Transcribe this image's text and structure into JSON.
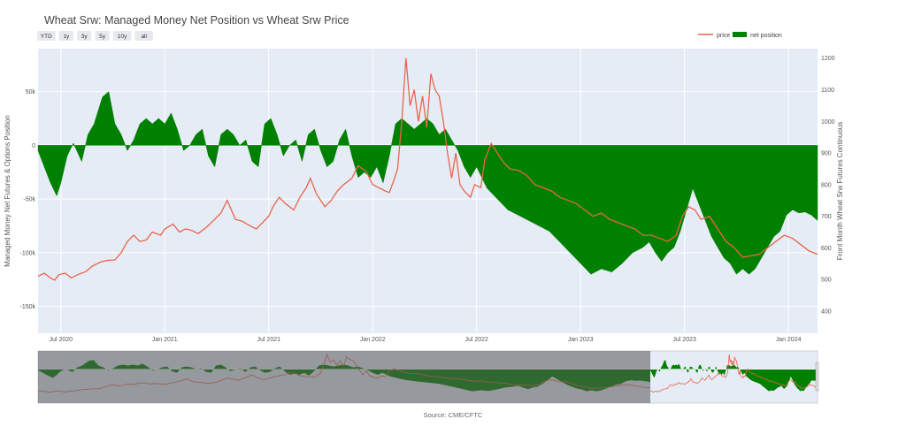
{
  "chart_data": {
    "type": "line",
    "title": "Wheat Srw: Managed Money Net Position vs Wheat Srw Price",
    "source": "Source: CME/CFTC",
    "range_buttons": [
      "YTD",
      "1y",
      "3y",
      "5y",
      "10y",
      "all"
    ],
    "legend": [
      {
        "name": "price",
        "color": "#e8654a",
        "kind": "line"
      },
      {
        "name": "net position",
        "color": "#008000",
        "kind": "area"
      }
    ],
    "y_left": {
      "label": "Managed Money Net Futures & Options Position",
      "ticks": [
        "50k",
        "0",
        "-50k",
        "-100k",
        "-150k"
      ],
      "tick_values": [
        50000,
        0,
        -50000,
        -100000,
        -150000
      ],
      "range": [
        -175000,
        90000
      ]
    },
    "y_right": {
      "label": "Front Month Wheat Srw Futures Continuous",
      "ticks": [
        "1200",
        "1100",
        "1000",
        "900",
        "800",
        "700",
        "600",
        "500",
        "400"
      ],
      "tick_values": [
        1200,
        1100,
        1000,
        900,
        800,
        700,
        600,
        500,
        400
      ],
      "range": [
        330,
        1230
      ]
    },
    "x_axis": {
      "ticks": [
        "Jul 2020",
        "Jan 2021",
        "Jul 2021",
        "Jan 2022",
        "Jul 2022",
        "Jan 2023",
        "Jul 2023",
        "Jan 2024"
      ],
      "tick_values": [
        2020.5,
        2021.0,
        2021.5,
        2022.0,
        2022.5,
        2023.0,
        2023.5,
        2024.0
      ],
      "range": [
        2020.39,
        2024.14
      ]
    },
    "series": [
      {
        "name": "price",
        "color": "#e8654a",
        "x": [
          2020.39,
          2020.42,
          2020.45,
          2020.47,
          2020.49,
          2020.52,
          2020.55,
          2020.58,
          2020.62,
          2020.65,
          2020.69,
          2020.72,
          2020.76,
          2020.79,
          2020.82,
          2020.85,
          2020.88,
          2020.91,
          2020.94,
          2020.98,
          2021.0,
          2021.04,
          2021.07,
          2021.1,
          2021.13,
          2021.16,
          2021.2,
          2021.24,
          2021.27,
          2021.3,
          2021.32,
          2021.34,
          2021.37,
          2021.41,
          2021.44,
          2021.47,
          2021.5,
          2021.52,
          2021.55,
          2021.58,
          2021.62,
          2021.65,
          2021.68,
          2021.7,
          2021.73,
          2021.77,
          2021.8,
          2021.83,
          2021.86,
          2021.9,
          2021.93,
          2021.97,
          2022.0,
          2022.03,
          2022.06,
          2022.08,
          2022.1,
          2022.12,
          2022.14,
          2022.16,
          2022.18,
          2022.2,
          2022.22,
          2022.24,
          2022.26,
          2022.28,
          2022.3,
          2022.32,
          2022.34,
          2022.36,
          2022.38,
          2022.4,
          2022.42,
          2022.44,
          2022.47,
          2022.49,
          2022.52,
          2022.54,
          2022.57,
          2022.6,
          2022.63,
          2022.66,
          2022.7,
          2022.74,
          2022.78,
          2022.82,
          2022.86,
          2022.9,
          2022.94,
          2022.98,
          2023.02,
          2023.06,
          2023.1,
          2023.14,
          2023.18,
          2023.22,
          2023.26,
          2023.3,
          2023.34,
          2023.38,
          2023.42,
          2023.46,
          2023.49,
          2023.52,
          2023.55,
          2023.58,
          2023.62,
          2023.66,
          2023.7,
          2023.74,
          2023.78,
          2023.82,
          2023.86,
          2023.9,
          2023.94,
          2023.98,
          2024.02,
          2024.06,
          2024.1,
          2024.14
        ],
        "values": [
          510,
          520,
          505,
          498,
          515,
          520,
          505,
          515,
          525,
          542,
          555,
          560,
          562,
          585,
          620,
          640,
          620,
          625,
          650,
          640,
          660,
          675,
          650,
          660,
          655,
          645,
          665,
          690,
          710,
          750,
          720,
          690,
          685,
          670,
          660,
          680,
          700,
          730,
          760,
          740,
          720,
          760,
          790,
          820,
          770,
          730,
          750,
          780,
          800,
          820,
          860,
          840,
          800,
          790,
          780,
          775,
          810,
          850,
          1000,
          1200,
          1050,
          1100,
          1000,
          1080,
          980,
          1150,
          1100,
          1080,
          1000,
          900,
          820,
          900,
          800,
          780,
          760,
          800,
          790,
          880,
          930,
          900,
          870,
          850,
          845,
          830,
          800,
          790,
          780,
          760,
          750,
          740,
          720,
          700,
          710,
          690,
          680,
          670,
          660,
          640,
          640,
          630,
          620,
          640,
          700,
          730,
          720,
          690,
          700,
          660,
          620,
          600,
          570,
          575,
          580,
          600,
          620,
          640,
          630,
          610,
          590,
          580
        ]
      },
      {
        "name": "net position",
        "color": "#008000",
        "x": [
          2020.39,
          2020.42,
          2020.45,
          2020.48,
          2020.5,
          2020.53,
          2020.56,
          2020.6,
          2020.63,
          2020.66,
          2020.7,
          2020.73,
          2020.76,
          2020.79,
          2020.82,
          2020.85,
          2020.88,
          2020.91,
          2020.94,
          2020.97,
          2021.0,
          2021.03,
          2021.06,
          2021.09,
          2021.12,
          2021.15,
          2021.18,
          2021.21,
          2021.24,
          2021.27,
          2021.3,
          2021.33,
          2021.36,
          2021.39,
          2021.42,
          2021.45,
          2021.48,
          2021.51,
          2021.54,
          2021.57,
          2021.6,
          2021.63,
          2021.66,
          2021.69,
          2021.72,
          2021.75,
          2021.78,
          2021.81,
          2021.84,
          2021.87,
          2021.9,
          2021.93,
          2021.96,
          2021.99,
          2022.02,
          2022.05,
          2022.08,
          2022.11,
          2022.14,
          2022.17,
          2022.2,
          2022.23,
          2022.26,
          2022.29,
          2022.32,
          2022.35,
          2022.38,
          2022.41,
          2022.44,
          2022.47,
          2022.5,
          2022.55,
          2022.6,
          2022.65,
          2022.7,
          2022.75,
          2022.8,
          2022.85,
          2022.9,
          2022.95,
          2023.0,
          2023.05,
          2023.1,
          2023.15,
          2023.2,
          2023.25,
          2023.3,
          2023.33,
          2023.36,
          2023.39,
          2023.42,
          2023.45,
          2023.48,
          2023.51,
          2023.54,
          2023.57,
          2023.6,
          2023.63,
          2023.66,
          2023.69,
          2023.72,
          2023.75,
          2023.78,
          2023.81,
          2023.84,
          2023.87,
          2023.9,
          2023.93,
          2023.96,
          2023.99,
          2024.02,
          2024.05,
          2024.08,
          2024.11,
          2024.14
        ],
        "values": [
          -5000,
          -20000,
          -35000,
          -47000,
          -35000,
          -10000,
          2000,
          -15000,
          10000,
          20000,
          45000,
          50000,
          20000,
          10000,
          -5000,
          5000,
          20000,
          25000,
          20000,
          25000,
          20000,
          30000,
          15000,
          -5000,
          0,
          10000,
          15000,
          -10000,
          -20000,
          10000,
          15000,
          10000,
          0,
          5000,
          -15000,
          -20000,
          20000,
          25000,
          10000,
          -10000,
          0,
          5000,
          -15000,
          10000,
          15000,
          -5000,
          -20000,
          -15000,
          5000,
          15000,
          -10000,
          -30000,
          -25000,
          -30000,
          -20000,
          -35000,
          -10000,
          20000,
          25000,
          20000,
          15000,
          20000,
          25000,
          20000,
          10000,
          15000,
          5000,
          -5000,
          -20000,
          -30000,
          -20000,
          -40000,
          -50000,
          -60000,
          -65000,
          -70000,
          -75000,
          -80000,
          -90000,
          -100000,
          -110000,
          -120000,
          -115000,
          -118000,
          -110000,
          -100000,
          -95000,
          -90000,
          -100000,
          -108000,
          -100000,
          -95000,
          -80000,
          -60000,
          -40000,
          -55000,
          -70000,
          -85000,
          -95000,
          -105000,
          -110000,
          -120000,
          -115000,
          -120000,
          -115000,
          -105000,
          -95000,
          -85000,
          -80000,
          -65000,
          -60000,
          -63000,
          -62000,
          -65000,
          -70000
        ]
      }
    ]
  }
}
